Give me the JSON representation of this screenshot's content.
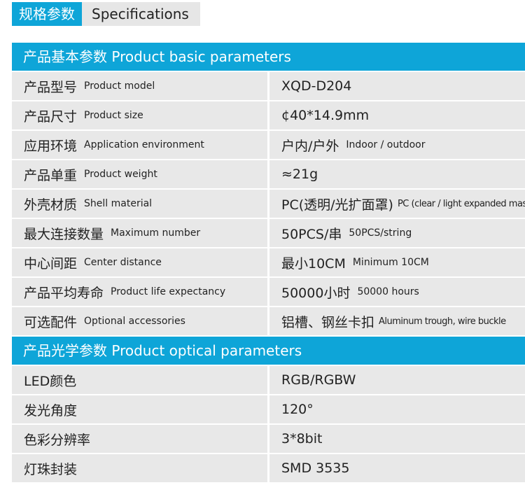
{
  "title": {
    "cn": "规格参数",
    "en": "Specifications"
  },
  "basic": {
    "header": "产品基本参数  Product basic parameters",
    "rows": [
      {
        "k_cn": "产品型号",
        "k_en": "Product model",
        "v_cn": "XQD-D204",
        "v_en": ""
      },
      {
        "k_cn": "产品尺寸",
        "k_en": "Product size",
        "v_cn": "¢40*14.9mm",
        "v_en": ""
      },
      {
        "k_cn": "应用环境",
        "k_en": "Application environment",
        "v_cn": "户内/户外",
        "v_en": "Indoor / outdoor"
      },
      {
        "k_cn": "产品单重",
        "k_en": "Product weight",
        "v_cn": "≈21g",
        "v_en": ""
      },
      {
        "k_cn": "外壳材质",
        "k_en": "Shell material",
        "v_cn": "PC(透明/光扩面罩)",
        "v_en": "PC (clear / light expanded mask)"
      },
      {
        "k_cn": "最大连接数量",
        "k_en": "Maximum number",
        "v_cn": "50PCS/串",
        "v_en": "50PCS/string"
      },
      {
        "k_cn": "中心间距",
        "k_en": "Center distance",
        "v_cn": "最小10CM",
        "v_en": "Minimum 10CM"
      },
      {
        "k_cn": "产品平均寿命",
        "k_en": "Product life expectancy",
        "v_cn": "50000小时",
        "v_en": "50000 hours"
      },
      {
        "k_cn": "可选配件",
        "k_en": "Optional accessories",
        "v_cn": "铝槽、钢丝卡扣",
        "v_en": "Aluminum trough, wire buckle"
      }
    ]
  },
  "optical": {
    "header": "产品光学参数  Product optical parameters",
    "rows": [
      {
        "k_cn": "LED颜色",
        "v_cn": "RGB/RGBW"
      },
      {
        "k_cn": "发光角度",
        "v_cn": "120°"
      },
      {
        "k_cn": "色彩分辨率",
        "v_cn": "3*8bit"
      },
      {
        "k_cn": "灯珠封装",
        "v_cn": "SMD 3535"
      }
    ]
  },
  "colors": {
    "accent": "#0ea5d8",
    "row_bg": "#e8e8e8"
  }
}
